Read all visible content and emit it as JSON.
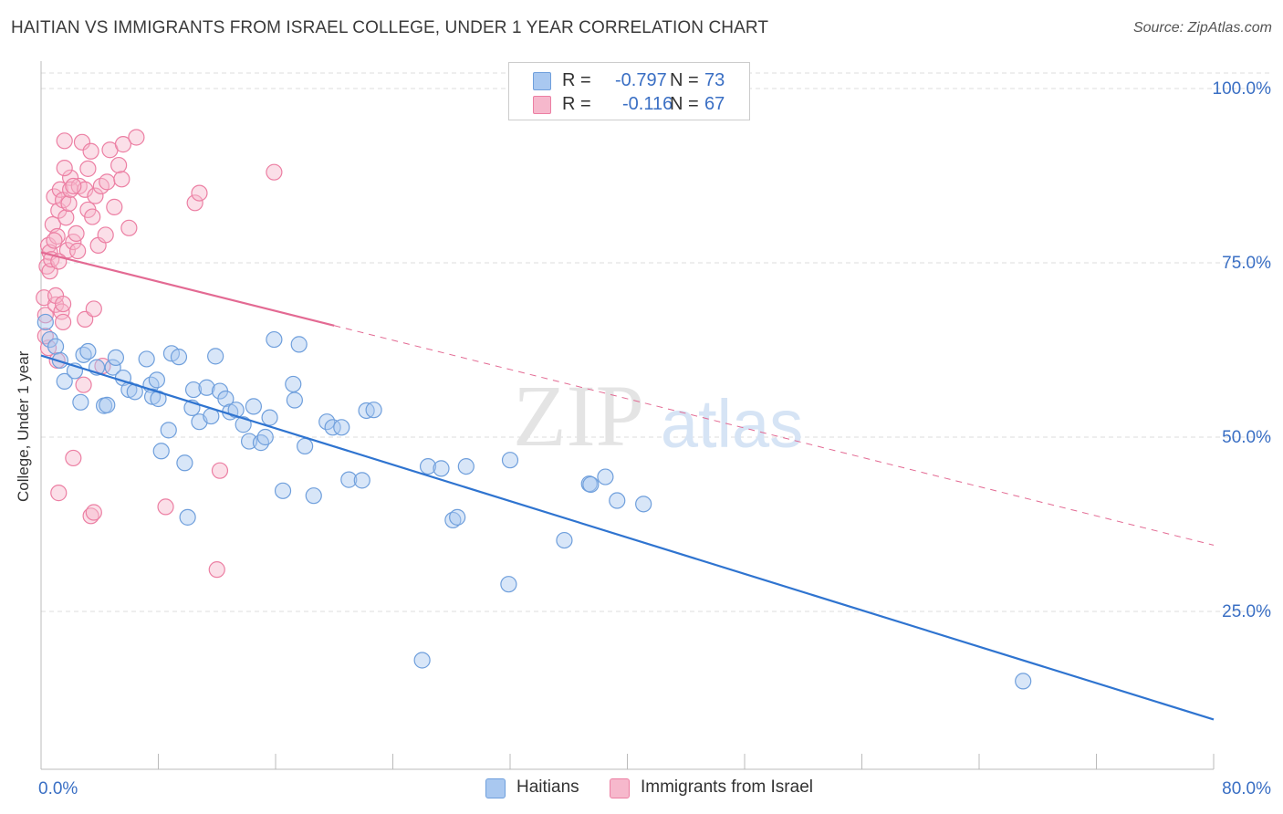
{
  "header": {
    "title": "HAITIAN VS IMMIGRANTS FROM ISRAEL COLLEGE, UNDER 1 YEAR CORRELATION CHART",
    "source": "Source: ZipAtlas.com"
  },
  "legend": {
    "series": [
      {
        "r_label": "R =",
        "r_value": "-0.797",
        "n_label": "N =",
        "n_value": "73"
      },
      {
        "r_label": "R =",
        "r_value": "-0.116",
        "n_label": "N =",
        "n_value": "67"
      }
    ]
  },
  "bottom_legend": {
    "items": [
      {
        "label": "Haitians"
      },
      {
        "label": "Immigrants from Israel"
      }
    ]
  },
  "watermark": {
    "zip": "ZIP",
    "atlas": "atlas"
  },
  "colors": {
    "blue_fill": "#a9c8f0",
    "blue_stroke": "#6f9fdc",
    "blue_line": "#2f74d0",
    "pink_fill": "#f6b8cc",
    "pink_stroke": "#ec7fa3",
    "pink_line": "#e36a93",
    "axis_text": "#3a6fc4",
    "grid": "#dddddd"
  },
  "chart_data": {
    "type": "scatter",
    "title": "HAITIAN VS IMMIGRANTS FROM ISRAEL COLLEGE, UNDER 1 YEAR CORRELATION CHART",
    "xlabel": "",
    "ylabel": "College, Under 1 year",
    "xlim": [
      0,
      80
    ],
    "ylim": [
      0,
      105
    ],
    "x_ticks": [
      0,
      8,
      16,
      24,
      32,
      40,
      48,
      56,
      64,
      72,
      80
    ],
    "x_tick_labels": {
      "0": "0.0%",
      "80": "80.0%"
    },
    "y_ticks": [
      25,
      50,
      75,
      100
    ],
    "y_tick_labels": [
      "25.0%",
      "50.0%",
      "75.0%",
      "100.0%"
    ],
    "grid": true,
    "legend_position": "top-center",
    "series": [
      {
        "name": "Haitians",
        "color": "#6f9fdc",
        "points": [
          [
            0.3,
            66.5
          ],
          [
            0.6,
            64.0
          ],
          [
            1.0,
            63.0
          ],
          [
            1.3,
            61.0
          ],
          [
            1.6,
            58.0
          ],
          [
            2.3,
            59.5
          ],
          [
            2.7,
            55.0
          ],
          [
            2.9,
            61.8
          ],
          [
            3.2,
            62.3
          ],
          [
            3.8,
            60.0
          ],
          [
            4.3,
            54.5
          ],
          [
            4.5,
            54.6
          ],
          [
            4.9,
            60.0
          ],
          [
            5.1,
            61.4
          ],
          [
            5.6,
            58.5
          ],
          [
            6.0,
            56.8
          ],
          [
            6.4,
            56.5
          ],
          [
            7.2,
            61.2
          ],
          [
            7.5,
            57.5
          ],
          [
            7.9,
            58.2
          ],
          [
            7.6,
            55.8
          ],
          [
            8.0,
            55.5
          ],
          [
            8.2,
            48.0
          ],
          [
            8.7,
            51.0
          ],
          [
            8.9,
            62.0
          ],
          [
            9.4,
            61.5
          ],
          [
            9.8,
            46.3
          ],
          [
            10.0,
            38.5
          ],
          [
            10.3,
            54.2
          ],
          [
            10.4,
            56.8
          ],
          [
            10.8,
            52.2
          ],
          [
            11.3,
            57.1
          ],
          [
            11.6,
            53.0
          ],
          [
            11.9,
            61.6
          ],
          [
            12.2,
            56.6
          ],
          [
            12.6,
            55.5
          ],
          [
            12.9,
            53.6
          ],
          [
            13.3,
            53.9
          ],
          [
            13.8,
            51.8
          ],
          [
            14.2,
            49.4
          ],
          [
            14.5,
            54.4
          ],
          [
            15.0,
            49.2
          ],
          [
            15.3,
            50.0
          ],
          [
            15.6,
            52.8
          ],
          [
            15.9,
            64.0
          ],
          [
            16.5,
            42.3
          ],
          [
            17.2,
            57.6
          ],
          [
            17.3,
            55.3
          ],
          [
            17.6,
            63.3
          ],
          [
            18.0,
            48.7
          ],
          [
            18.6,
            41.6
          ],
          [
            19.5,
            52.2
          ],
          [
            19.9,
            51.4
          ],
          [
            20.5,
            51.4
          ],
          [
            21.0,
            43.9
          ],
          [
            21.9,
            43.8
          ],
          [
            22.2,
            53.8
          ],
          [
            22.7,
            53.9
          ],
          [
            26.4,
            45.8
          ],
          [
            28.1,
            38.1
          ],
          [
            28.4,
            38.5
          ],
          [
            29.0,
            45.8
          ],
          [
            31.9,
            28.9
          ],
          [
            32.0,
            46.7
          ],
          [
            35.7,
            35.2
          ],
          [
            37.4,
            43.3
          ],
          [
            37.5,
            43.2
          ],
          [
            38.5,
            44.3
          ],
          [
            39.3,
            40.9
          ],
          [
            41.1,
            40.4
          ],
          [
            27.3,
            45.5
          ],
          [
            26.0,
            18.0
          ],
          [
            67.0,
            15.0
          ]
        ],
        "trend": {
          "x": [
            0,
            80
          ],
          "y": [
            61.7,
            9.5
          ]
        }
      },
      {
        "name": "Immigrants from Israel",
        "color": "#ec7fa3",
        "points": [
          [
            0.2,
            70.0
          ],
          [
            0.3,
            67.5
          ],
          [
            0.4,
            74.5
          ],
          [
            0.5,
            77.5
          ],
          [
            0.6,
            76.5
          ],
          [
            0.6,
            73.8
          ],
          [
            0.7,
            75.5
          ],
          [
            0.8,
            80.5
          ],
          [
            0.9,
            84.5
          ],
          [
            1.0,
            69.0
          ],
          [
            1.1,
            78.8
          ],
          [
            1.2,
            82.5
          ],
          [
            1.3,
            85.5
          ],
          [
            1.4,
            68.0
          ],
          [
            1.5,
            84.0
          ],
          [
            1.6,
            92.5
          ],
          [
            1.7,
            81.5
          ],
          [
            1.8,
            76.8
          ],
          [
            1.9,
            83.5
          ],
          [
            2.0,
            87.2
          ],
          [
            2.0,
            85.5
          ],
          [
            2.2,
            78.0
          ],
          [
            2.4,
            79.2
          ],
          [
            2.6,
            86.0
          ],
          [
            2.8,
            92.3
          ],
          [
            3.0,
            85.5
          ],
          [
            3.2,
            82.6
          ],
          [
            3.2,
            88.5
          ],
          [
            3.4,
            91.0
          ],
          [
            3.5,
            81.6
          ],
          [
            3.7,
            84.6
          ],
          [
            3.9,
            77.5
          ],
          [
            4.1,
            86.0
          ],
          [
            4.4,
            79.0
          ],
          [
            4.7,
            91.2
          ],
          [
            5.0,
            83.0
          ],
          [
            5.3,
            89.0
          ],
          [
            5.6,
            92.0
          ],
          [
            6.0,
            80.0
          ],
          [
            6.5,
            93.0
          ],
          [
            8.5,
            40.0
          ],
          [
            10.5,
            83.6
          ],
          [
            10.8,
            85.0
          ],
          [
            12.0,
            31.0
          ],
          [
            12.2,
            45.2
          ],
          [
            15.9,
            88.0
          ],
          [
            1.2,
            42.0
          ],
          [
            2.2,
            47.0
          ],
          [
            3.4,
            38.7
          ],
          [
            3.6,
            39.2
          ],
          [
            1.5,
            66.5
          ],
          [
            4.2,
            60.2
          ],
          [
            2.9,
            57.5
          ],
          [
            1.0,
            70.3
          ],
          [
            3.0,
            66.9
          ],
          [
            0.5,
            62.8
          ],
          [
            1.5,
            69.1
          ],
          [
            4.5,
            86.6
          ],
          [
            2.2,
            86.0
          ],
          [
            0.9,
            78.2
          ],
          [
            3.6,
            68.4
          ],
          [
            1.6,
            88.6
          ],
          [
            1.2,
            75.2
          ],
          [
            2.5,
            76.7
          ],
          [
            5.5,
            87.0
          ],
          [
            0.3,
            64.5
          ],
          [
            1.1,
            61.0
          ]
        ],
        "trend": {
          "x": [
            0,
            20
          ],
          "y": [
            76.5,
            66.0
          ]
        },
        "trend_extension": {
          "x": [
            20,
            80
          ],
          "y": [
            66.0,
            34.5
          ]
        }
      }
    ]
  }
}
